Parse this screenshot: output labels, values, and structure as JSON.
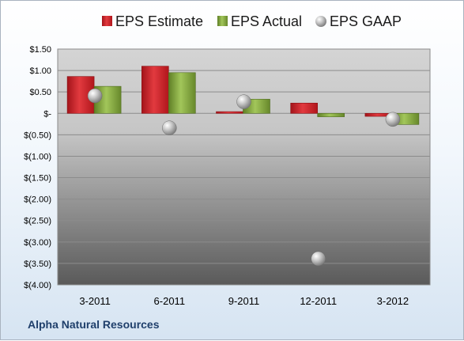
{
  "company": "Alpha Natural Resources",
  "chart_data": {
    "type": "bar",
    "title": "",
    "xlabel": "",
    "ylabel": "",
    "categories": [
      "3-2011",
      "6-2011",
      "9-2011",
      "12-2011",
      "3-2012"
    ],
    "ylim": [
      -4.0,
      1.5
    ],
    "yticks": [
      1.5,
      1.0,
      0.5,
      0,
      -0.5,
      -1.0,
      -1.5,
      -2.0,
      -2.5,
      -3.0,
      -3.5,
      -4.0
    ],
    "ytick_labels": [
      "$1.50",
      "$1.00",
      "$0.50",
      "$-",
      "$(0.50)",
      "$(1.00)",
      "$(1.50)",
      "$(2.00)",
      "$(2.50)",
      "$(3.00)",
      "$(3.50)",
      "$(4.00)"
    ],
    "legend_position": "top",
    "grid": true,
    "series": [
      {
        "name": "EPS Estimate",
        "kind": "bar",
        "color": "#cc1f24",
        "values": [
          0.86,
          1.1,
          0.04,
          0.24,
          -0.07
        ]
      },
      {
        "name": "EPS Actual",
        "kind": "bar",
        "color": "#7fa33a",
        "values": [
          0.63,
          0.95,
          0.33,
          -0.08,
          -0.26
        ]
      },
      {
        "name": "EPS GAAP",
        "kind": "marker",
        "color": "#b8b8b8",
        "values": [
          0.41,
          -0.34,
          0.27,
          -3.39,
          -0.14
        ]
      }
    ]
  }
}
